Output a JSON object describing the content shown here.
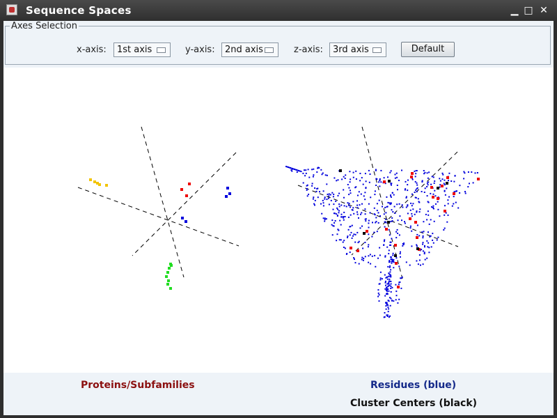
{
  "window": {
    "title": "Sequence Spaces"
  },
  "axes_selection": {
    "legend": "Axes Selection",
    "x_label": "x-axis:",
    "x_value": "1st axis",
    "y_label": "y-axis:",
    "y_value": "2nd axis",
    "z_label": "z-axis:",
    "z_value": "3rd axis",
    "default_label": "Default"
  },
  "legend": {
    "proteins": "Proteins/Subfamilies",
    "residues": "Residues (blue)",
    "centers": "Cluster Centers (black)"
  },
  "colors": {
    "proteins_label": "#8b1010",
    "residues_label": "#152a8a",
    "residue_points": "#0000dd",
    "highlight_points": "#ee0000",
    "center_points": "#000000",
    "subfamily_yellow": "#f2c400",
    "subfamily_red": "#ee0000",
    "subfamily_blue": "#0000dd",
    "subfamily_green": "#22dd22"
  },
  "icons": {
    "app": "java-app-icon",
    "minimize": "minimize-icon",
    "maximize": "maximize-icon",
    "close": "close-icon"
  }
}
